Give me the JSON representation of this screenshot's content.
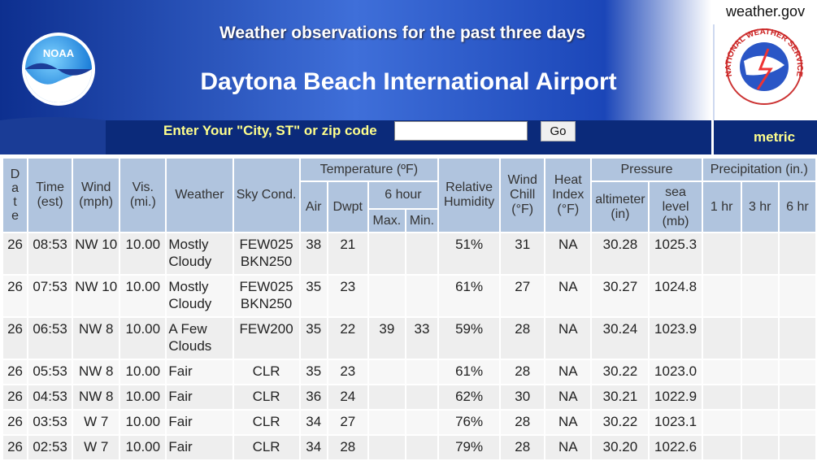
{
  "header": {
    "site": "weather.gov",
    "subtitle": "Weather observations for the past three days",
    "title": "Daytona Beach International Airport",
    "search_label": "Enter Your \"City, ST\" or zip code",
    "button": "Go",
    "units_link": "metric",
    "noaa_logo": "NOAA",
    "nws_logo": "NATIONAL WEATHER SERVICE"
  },
  "table": {
    "columns": {
      "date": "Date",
      "time": "Time (est)",
      "wind": "Wind (mph)",
      "vis": "Vis. (mi.)",
      "weather": "Weather",
      "sky": "Sky Cond.",
      "temperature": "Temperature (ºF)",
      "air": "Air",
      "dwpt": "Dwpt",
      "six_hour": "6 hour",
      "max": "Max.",
      "min": "Min.",
      "humidity": "Relative Humidity",
      "wind_chill": "Wind Chill (°F)",
      "heat_index": "Heat Index (°F)",
      "pressure": "Pressure",
      "altimeter": "altimeter (in)",
      "sea_level": "sea level (mb)",
      "precipitation": "Precipitation (in.)",
      "p1": "1 hr",
      "p3": "3 hr",
      "p6": "6 hr"
    },
    "rows": [
      [
        "26",
        "08:53",
        "NW 10",
        "10.00",
        "Mostly Cloudy",
        "FEW025 BKN250",
        "38",
        "21",
        null,
        null,
        "51%",
        "31",
        "NA",
        "30.28",
        "1025.3",
        null,
        null,
        null
      ],
      [
        "26",
        "07:53",
        "NW 10",
        "10.00",
        "Mostly Cloudy",
        "FEW025 BKN250",
        "35",
        "23",
        null,
        null,
        "61%",
        "27",
        "NA",
        "30.27",
        "1024.8",
        null,
        null,
        null
      ],
      [
        "26",
        "06:53",
        "NW 8",
        "10.00",
        "A Few Clouds",
        "FEW200",
        "35",
        "22",
        "39",
        "33",
        "59%",
        "28",
        "NA",
        "30.24",
        "1023.9",
        null,
        null,
        null
      ],
      [
        "26",
        "05:53",
        "NW 8",
        "10.00",
        "Fair",
        "CLR",
        "35",
        "23",
        null,
        null,
        "61%",
        "28",
        "NA",
        "30.22",
        "1023.0",
        null,
        null,
        null
      ],
      [
        "26",
        "04:53",
        "NW 8",
        "10.00",
        "Fair",
        "CLR",
        "36",
        "24",
        null,
        null,
        "62%",
        "30",
        "NA",
        "30.21",
        "1022.9",
        null,
        null,
        null
      ],
      [
        "26",
        "03:53",
        "W 7",
        "10.00",
        "Fair",
        "CLR",
        "34",
        "27",
        null,
        null,
        "76%",
        "28",
        "NA",
        "30.22",
        "1023.1",
        null,
        null,
        null
      ],
      [
        "26",
        "02:53",
        "W 7",
        "10.00",
        "Fair",
        "CLR",
        "34",
        "28",
        null,
        null,
        "79%",
        "28",
        "NA",
        "30.20",
        "1022.6",
        null,
        null,
        null
      ]
    ]
  }
}
